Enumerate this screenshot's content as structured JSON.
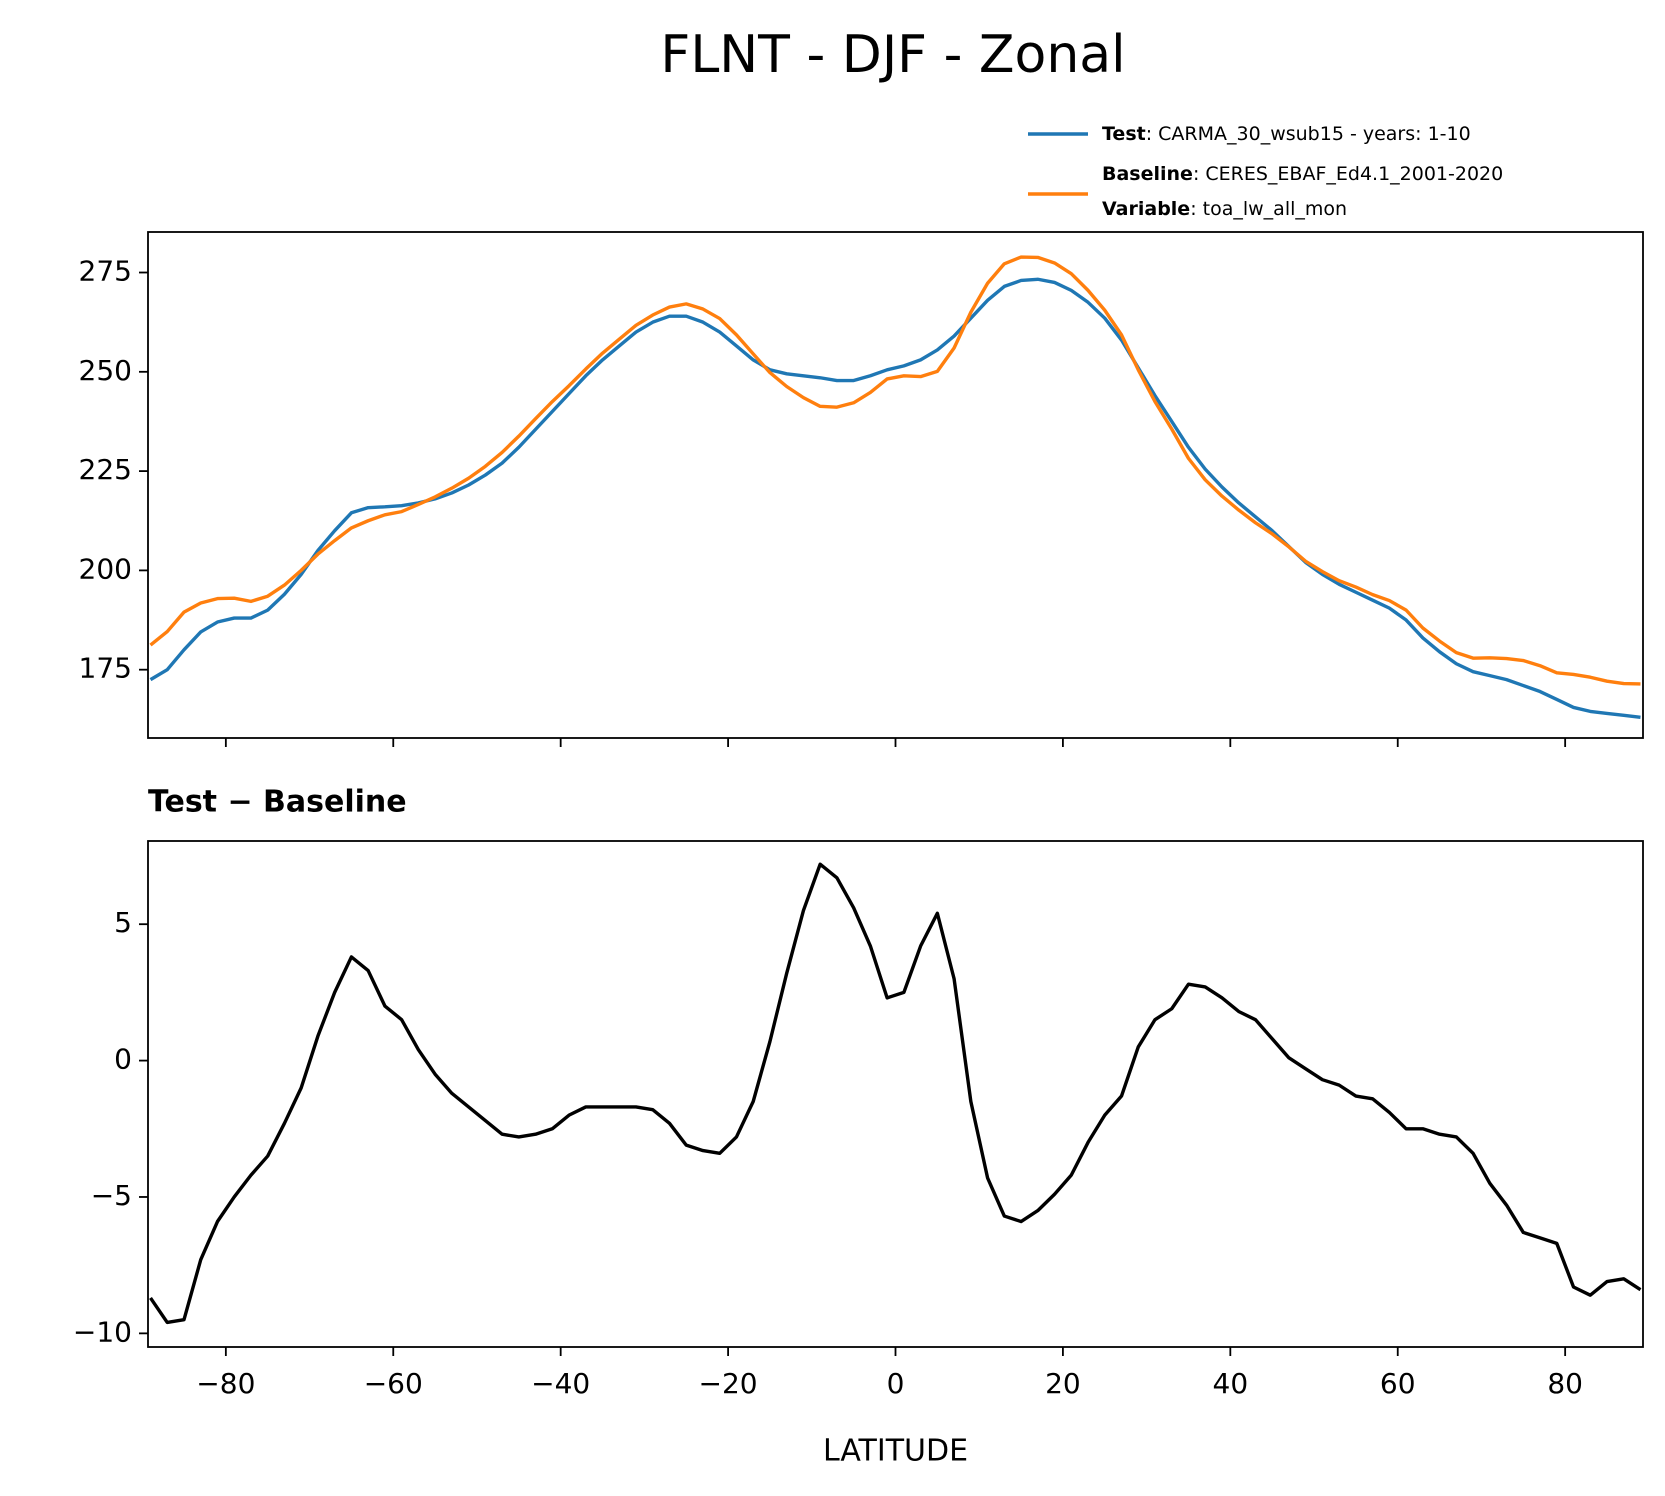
{
  "title": "FLNT - DJF - Zonal",
  "chart_data": [
    {
      "type": "line",
      "x": [
        -89,
        -87,
        -85,
        -83,
        -81,
        -79,
        -77,
        -75,
        -73,
        -71,
        -69,
        -67,
        -65,
        -63,
        -61,
        -59,
        -57,
        -55,
        -53,
        -51,
        -49,
        -47,
        -45,
        -43,
        -41,
        -39,
        -37,
        -35,
        -33,
        -31,
        -29,
        -27,
        -25,
        -23,
        -21,
        -19,
        -17,
        -15,
        -13,
        -11,
        -9,
        -7,
        -5,
        -3,
        -1,
        1,
        3,
        5,
        7,
        9,
        11,
        13,
        15,
        17,
        19,
        21,
        23,
        25,
        27,
        29,
        31,
        33,
        35,
        37,
        39,
        41,
        43,
        45,
        47,
        49,
        51,
        53,
        55,
        57,
        59,
        61,
        63,
        65,
        67,
        69,
        71,
        73,
        75,
        77,
        79,
        81,
        83,
        85,
        87,
        89
      ],
      "series": [
        {
          "name": "Test",
          "label": ": CARMA_30_wsub15 - years: 1-10",
          "color": "#1f77b4",
          "values": [
            172.5,
            175,
            180,
            184.5,
            187,
            188,
            188,
            190,
            194,
            199,
            205,
            210,
            214.5,
            215.8,
            216,
            216.3,
            217,
            218,
            219.5,
            221.5,
            224,
            227,
            231,
            235.5,
            240,
            244.5,
            249,
            253,
            256.5,
            260,
            262.5,
            264,
            264,
            262.5,
            260,
            256.5,
            253,
            250.5,
            249.5,
            249,
            248.5,
            247.8,
            247.8,
            249,
            250.5,
            251.5,
            253,
            255.5,
            259,
            263.5,
            268,
            271.5,
            273,
            273.3,
            272.5,
            270.5,
            267.5,
            263.5,
            258,
            251,
            244,
            237.5,
            231,
            225.5,
            221,
            217,
            213.5,
            210,
            206,
            202,
            199,
            196.5,
            194.5,
            192.5,
            190.5,
            187.5,
            183,
            179.5,
            176.5,
            174.5,
            173.5,
            172.5,
            171,
            169.5,
            167.5,
            165.5,
            164.5,
            164,
            163.5,
            163
          ]
        },
        {
          "name": "Baseline",
          "label": ": CERES_EBAF_Ed4.1_2001-2020",
          "color": "#ff7f0e",
          "values": [
            181.2,
            184.6,
            189.5,
            191.8,
            192.9,
            193.0,
            192.2,
            193.5,
            196.3,
            200.0,
            204.1,
            207.5,
            210.7,
            212.5,
            214.0,
            214.8,
            216.6,
            218.5,
            220.7,
            223.2,
            226.2,
            229.7,
            233.8,
            238.2,
            242.5,
            246.5,
            250.7,
            254.7,
            258.2,
            261.7,
            264.3,
            266.3,
            267.1,
            265.8,
            263.4,
            259.3,
            254.5,
            249.8,
            246.3,
            243.5,
            241.3,
            241.1,
            242.2,
            244.8,
            248.2,
            249.0,
            248.8,
            250.1,
            256.0,
            265.0,
            272.3,
            277.2,
            278.9,
            278.8,
            277.4,
            274.7,
            270.5,
            265.5,
            259.3,
            250.5,
            242.5,
            235.6,
            228.2,
            222.8,
            218.7,
            215.2,
            212.0,
            209.2,
            205.9,
            202.3,
            199.7,
            197.4,
            195.8,
            193.9,
            192.4,
            190.0,
            185.5,
            182.2,
            179.3,
            177.9,
            178.0,
            177.8,
            177.3,
            176.0,
            174.2,
            173.8,
            173.1,
            172.1,
            171.5,
            171.4
          ]
        }
      ],
      "legend_extra": {
        "name": "Variable",
        "label": ": toa_lw_all_mon"
      },
      "legend": "upper right",
      "xlim": [
        -89.3,
        89.3
      ],
      "xticks": [
        -80,
        -60,
        -40,
        -20,
        0,
        20,
        40,
        60,
        80
      ],
      "ylim": [
        157.8,
        285.2
      ],
      "yticks": [
        175,
        200,
        225,
        250,
        275
      ]
    },
    {
      "type": "line",
      "title": "Test − Baseline",
      "xlabel": "LATITUDE",
      "x": [
        -89,
        -87,
        -85,
        -83,
        -81,
        -79,
        -77,
        -75,
        -73,
        -71,
        -69,
        -67,
        -65,
        -63,
        -61,
        -59,
        -57,
        -55,
        -53,
        -51,
        -49,
        -47,
        -45,
        -43,
        -41,
        -39,
        -37,
        -35,
        -33,
        -31,
        -29,
        -27,
        -25,
        -23,
        -21,
        -19,
        -17,
        -15,
        -13,
        -11,
        -9,
        -7,
        -5,
        -3,
        -1,
        1,
        3,
        5,
        7,
        9,
        11,
        13,
        15,
        17,
        19,
        21,
        23,
        25,
        27,
        29,
        31,
        33,
        35,
        37,
        39,
        41,
        43,
        45,
        47,
        49,
        51,
        53,
        55,
        57,
        59,
        61,
        63,
        65,
        67,
        69,
        71,
        73,
        75,
        77,
        79,
        81,
        83,
        85,
        87,
        89
      ],
      "series": [
        {
          "color": "#000000",
          "values": [
            -8.7,
            -9.6,
            -9.5,
            -7.3,
            -5.9,
            -5.0,
            -4.2,
            -3.5,
            -2.3,
            -1.0,
            0.9,
            2.5,
            3.8,
            3.3,
            2.0,
            1.5,
            0.4,
            -0.5,
            -1.2,
            -1.7,
            -2.2,
            -2.7,
            -2.8,
            -2.7,
            -2.5,
            -2.0,
            -1.7,
            -1.7,
            -1.7,
            -1.7,
            -1.8,
            -2.3,
            -3.1,
            -3.3,
            -3.4,
            -2.8,
            -1.5,
            0.7,
            3.2,
            5.5,
            7.2,
            6.7,
            5.6,
            4.2,
            2.3,
            2.5,
            4.2,
            5.4,
            3.0,
            -1.5,
            -4.3,
            -5.7,
            -5.9,
            -5.5,
            -4.9,
            -4.2,
            -3.0,
            -2.0,
            -1.3,
            0.5,
            1.5,
            1.9,
            2.8,
            2.7,
            2.3,
            1.8,
            1.5,
            0.8,
            0.1,
            -0.3,
            -0.7,
            -0.9,
            -1.3,
            -1.4,
            -1.9,
            -2.5,
            -2.5,
            -2.7,
            -2.8,
            -3.4,
            -4.5,
            -5.3,
            -6.3,
            -6.5,
            -6.7,
            -8.3,
            -8.6,
            -8.1,
            -8.0,
            -8.4
          ]
        }
      ],
      "xlim": [
        -89.3,
        89.3
      ],
      "xticks": [
        {
          "value": -80,
          "label": "−80"
        },
        {
          "value": -60,
          "label": "−60"
        },
        {
          "value": -40,
          "label": "−40"
        },
        {
          "value": -20,
          "label": "−20"
        },
        0,
        20,
        40,
        60,
        80
      ],
      "ylim": [
        -10.5,
        8.05
      ],
      "yticks": [
        {
          "value": -10,
          "label": "−10"
        },
        {
          "value": -5,
          "label": "−5"
        },
        0,
        5
      ]
    }
  ]
}
